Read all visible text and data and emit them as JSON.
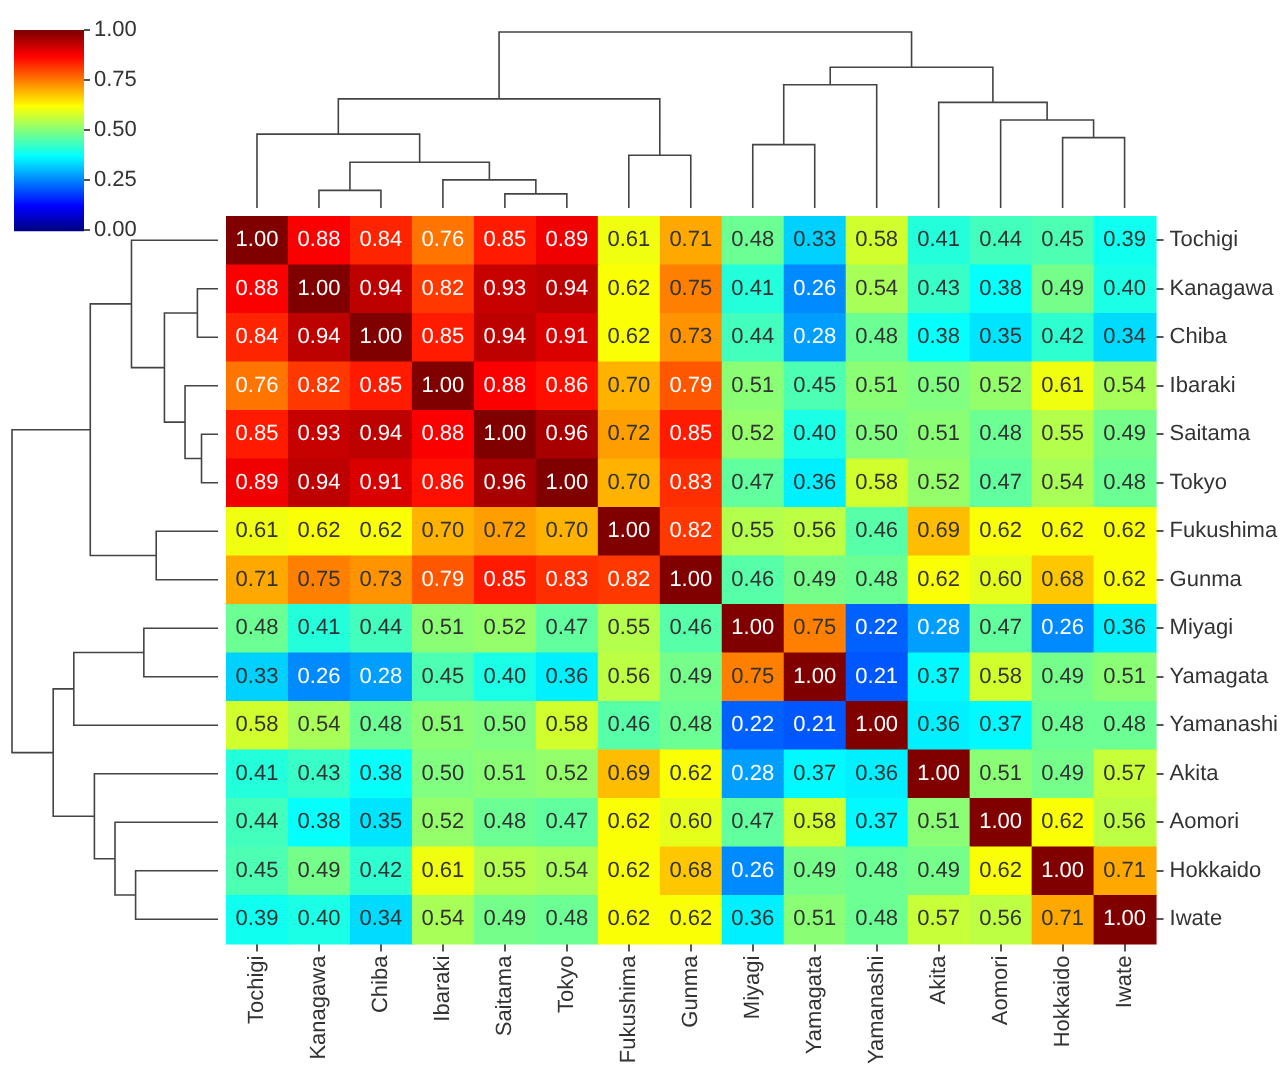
{
  "chart_data": {
    "type": "heatmap",
    "categories": [
      "Tochigi",
      "Kanagawa",
      "Chiba",
      "Ibaraki",
      "Saitama",
      "Tokyo",
      "Fukushima",
      "Gunma",
      "Miyagi",
      "Yamagata",
      "Yamanashi",
      "Akita",
      "Aomori",
      "Hokkaido",
      "Iwate"
    ],
    "y_categories": [
      "Tochigi",
      "Kanagawa",
      "Chiba",
      "Ibaraki",
      "Saitama",
      "Tokyo",
      "Fukushima",
      "Gunma",
      "Miyagi",
      "Yamagata",
      "Yamanashi",
      "Akita",
      "Aomori",
      "Hokkaido",
      "Iwate"
    ],
    "cells": [
      [
        1.0,
        0.88,
        0.84,
        0.76,
        0.85,
        0.89,
        0.61,
        0.71,
        0.48,
        0.33,
        0.58,
        0.41,
        0.44,
        0.45,
        0.39
      ],
      [
        0.88,
        1.0,
        0.94,
        0.82,
        0.93,
        0.94,
        0.62,
        0.75,
        0.41,
        0.26,
        0.54,
        0.43,
        0.38,
        0.49,
        0.4
      ],
      [
        0.84,
        0.94,
        1.0,
        0.85,
        0.94,
        0.91,
        0.62,
        0.73,
        0.44,
        0.28,
        0.48,
        0.38,
        0.35,
        0.42,
        0.34
      ],
      [
        0.76,
        0.82,
        0.85,
        1.0,
        0.88,
        0.86,
        0.7,
        0.79,
        0.51,
        0.45,
        0.51,
        0.5,
        0.52,
        0.61,
        0.54
      ],
      [
        0.85,
        0.93,
        0.94,
        0.88,
        1.0,
        0.96,
        0.72,
        0.85,
        0.52,
        0.4,
        0.5,
        0.51,
        0.48,
        0.55,
        0.49
      ],
      [
        0.89,
        0.94,
        0.91,
        0.86,
        0.96,
        1.0,
        0.7,
        0.83,
        0.47,
        0.36,
        0.58,
        0.52,
        0.47,
        0.54,
        0.48
      ],
      [
        0.61,
        0.62,
        0.62,
        0.7,
        0.72,
        0.7,
        1.0,
        0.82,
        0.55,
        0.56,
        0.46,
        0.69,
        0.62,
        0.62,
        0.62
      ],
      [
        0.71,
        0.75,
        0.73,
        0.79,
        0.85,
        0.83,
        0.82,
        1.0,
        0.46,
        0.49,
        0.48,
        0.62,
        0.6,
        0.68,
        0.62
      ],
      [
        0.48,
        0.41,
        0.44,
        0.51,
        0.52,
        0.47,
        0.55,
        0.46,
        1.0,
        0.75,
        0.22,
        0.28,
        0.47,
        0.26,
        0.36
      ],
      [
        0.33,
        0.26,
        0.28,
        0.45,
        0.4,
        0.36,
        0.56,
        0.49,
        0.75,
        1.0,
        0.21,
        0.37,
        0.58,
        0.49,
        0.51
      ],
      [
        0.58,
        0.54,
        0.48,
        0.51,
        0.5,
        0.58,
        0.46,
        0.48,
        0.22,
        0.21,
        1.0,
        0.36,
        0.37,
        0.48,
        0.48
      ],
      [
        0.41,
        0.43,
        0.38,
        0.5,
        0.51,
        0.52,
        0.69,
        0.62,
        0.28,
        0.37,
        0.36,
        1.0,
        0.51,
        0.49,
        0.57
      ],
      [
        0.44,
        0.38,
        0.35,
        0.52,
        0.48,
        0.47,
        0.62,
        0.6,
        0.47,
        0.58,
        0.37,
        0.51,
        1.0,
        0.62,
        0.56
      ],
      [
        0.45,
        0.49,
        0.42,
        0.61,
        0.55,
        0.54,
        0.62,
        0.68,
        0.26,
        0.49,
        0.48,
        0.49,
        0.62,
        1.0,
        0.71
      ],
      [
        0.39,
        0.4,
        0.34,
        0.54,
        0.49,
        0.48,
        0.62,
        0.62,
        0.36,
        0.51,
        0.48,
        0.57,
        0.56,
        0.71,
        1.0
      ]
    ],
    "data_labels": true,
    "cell_labels": [
      [
        "1.00",
        "0.88",
        "0.84",
        "0.76",
        "0.85",
        "0.89",
        "0.61",
        "0.71",
        "0.48",
        "0.33",
        "0.58",
        "0.41",
        "0.44",
        "0.45",
        "0.39"
      ],
      [
        "0.88",
        "1.00",
        "0.94",
        "0.82",
        "0.93",
        "0.94",
        "0.62",
        "0.75",
        "0.41",
        "0.26",
        "0.54",
        "0.43",
        "0.38",
        "0.49",
        "0.40"
      ],
      [
        "0.84",
        "0.94",
        "1.00",
        "0.85",
        "0.94",
        "0.91",
        "0.62",
        "0.73",
        "0.44",
        "0.28",
        "0.48",
        "0.38",
        "0.35",
        "0.42",
        "0.34"
      ],
      [
        "0.76",
        "0.82",
        "0.85",
        "1.00",
        "0.88",
        "0.86",
        "0.70",
        "0.79",
        "0.51",
        "0.45",
        "0.51",
        "0.50",
        "0.52",
        "0.61",
        "0.54"
      ],
      [
        "0.85",
        "0.93",
        "0.94",
        "0.88",
        "1.00",
        "0.96",
        "0.72",
        "0.85",
        "0.52",
        "0.40",
        "0.50",
        "0.51",
        "0.48",
        "0.55",
        "0.49"
      ],
      [
        "0.89",
        "0.94",
        "0.91",
        "0.86",
        "0.96",
        "1.00",
        "0.70",
        "0.83",
        "0.47",
        "0.36",
        "0.58",
        "0.52",
        "0.47",
        "0.54",
        "0.48"
      ],
      [
        "0.61",
        "0.62",
        "0.62",
        "0.70",
        "0.72",
        "0.70",
        "1.00",
        "0.82",
        "0.55",
        "0.56",
        "0.46",
        "0.69",
        "0.62",
        "0.62",
        "0.62"
      ],
      [
        "0.71",
        "0.75",
        "0.73",
        "0.79",
        "0.85",
        "0.83",
        "0.82",
        "1.00",
        "0.46",
        "0.49",
        "0.48",
        "0.62",
        "0.60",
        "0.68",
        "0.62"
      ],
      [
        "0.48",
        "0.41",
        "0.44",
        "0.51",
        "0.52",
        "0.47",
        "0.55",
        "0.46",
        "1.00",
        "0.75",
        "0.22",
        "0.28",
        "0.47",
        "0.26",
        "0.36"
      ],
      [
        "0.33",
        "0.26",
        "0.28",
        "0.45",
        "0.40",
        "0.36",
        "0.56",
        "0.49",
        "0.75",
        "1.00",
        "0.21",
        "0.37",
        "0.58",
        "0.49",
        "0.51"
      ],
      [
        "0.58",
        "0.54",
        "0.48",
        "0.51",
        "0.50",
        "0.58",
        "0.46",
        "0.48",
        "0.22",
        "0.21",
        "1.00",
        "0.36",
        "0.37",
        "0.48",
        "0.48"
      ],
      [
        "0.41",
        "0.43",
        "0.38",
        "0.50",
        "0.51",
        "0.52",
        "0.69",
        "0.62",
        "0.28",
        "0.37",
        "0.36",
        "1.00",
        "0.51",
        "0.49",
        "0.57"
      ],
      [
        "0.44",
        "0.38",
        "0.35",
        "0.52",
        "0.48",
        "0.47",
        "0.62",
        "0.60",
        "0.47",
        "0.58",
        "0.37",
        "0.51",
        "1.00",
        "0.62",
        "0.56"
      ],
      [
        "0.45",
        "0.49",
        "0.42",
        "0.61",
        "0.55",
        "0.54",
        "0.62",
        "0.68",
        "0.26",
        "0.49",
        "0.48",
        "0.49",
        "0.62",
        "1.00",
        "0.71"
      ],
      [
        "0.39",
        "0.40",
        "0.34",
        "0.54",
        "0.49",
        "0.48",
        "0.62",
        "0.62",
        "0.36",
        "0.51",
        "0.48",
        "0.57",
        "0.56",
        "0.71",
        "1.00"
      ]
    ],
    "clim": [
      0,
      1
    ],
    "cticks": [
      {
        "value": 0,
        "label": "0.00"
      },
      {
        "value": 0.25,
        "label": "0.25"
      },
      {
        "value": 0.5,
        "label": "0.50"
      },
      {
        "value": 0.75,
        "label": "0.75"
      },
      {
        "value": 1,
        "label": "1.00"
      }
    ]
  }
}
